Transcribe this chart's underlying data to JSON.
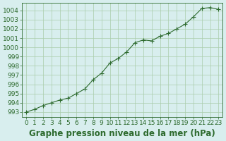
{
  "hours": [
    0,
    1,
    2,
    3,
    4,
    5,
    6,
    7,
    8,
    9,
    10,
    11,
    12,
    13,
    14,
    15,
    16,
    17,
    18,
    19,
    20,
    21,
    22,
    23
  ],
  "pressure": [
    993.0,
    993.3,
    993.7,
    994.0,
    994.3,
    994.5,
    995.0,
    995.5,
    996.5,
    997.2,
    998.3,
    998.8,
    999.5,
    1000.5,
    1000.8,
    1000.7,
    1001.2,
    1001.5,
    1002.0,
    1002.5,
    1003.3,
    1004.2,
    1004.3,
    1004.1
  ],
  "line_color": "#2d6a2d",
  "marker": "+",
  "bg_color": "#d8eeee",
  "grid_color": "#aaccaa",
  "xlabel": "Graphe pression niveau de la mer (hPa)",
  "ylim": [
    992.5,
    1004.8
  ],
  "xlim": [
    -0.5,
    23.5
  ],
  "yticks": [
    993,
    994,
    995,
    996,
    997,
    998,
    999,
    1000,
    1001,
    1002,
    1003,
    1004
  ],
  "xticks": [
    0,
    1,
    2,
    3,
    4,
    5,
    6,
    7,
    8,
    9,
    10,
    11,
    12,
    13,
    14,
    15,
    16,
    17,
    18,
    19,
    20,
    21,
    22,
    23
  ],
  "tick_label_fontsize": 6.5,
  "xlabel_fontsize": 8.5
}
